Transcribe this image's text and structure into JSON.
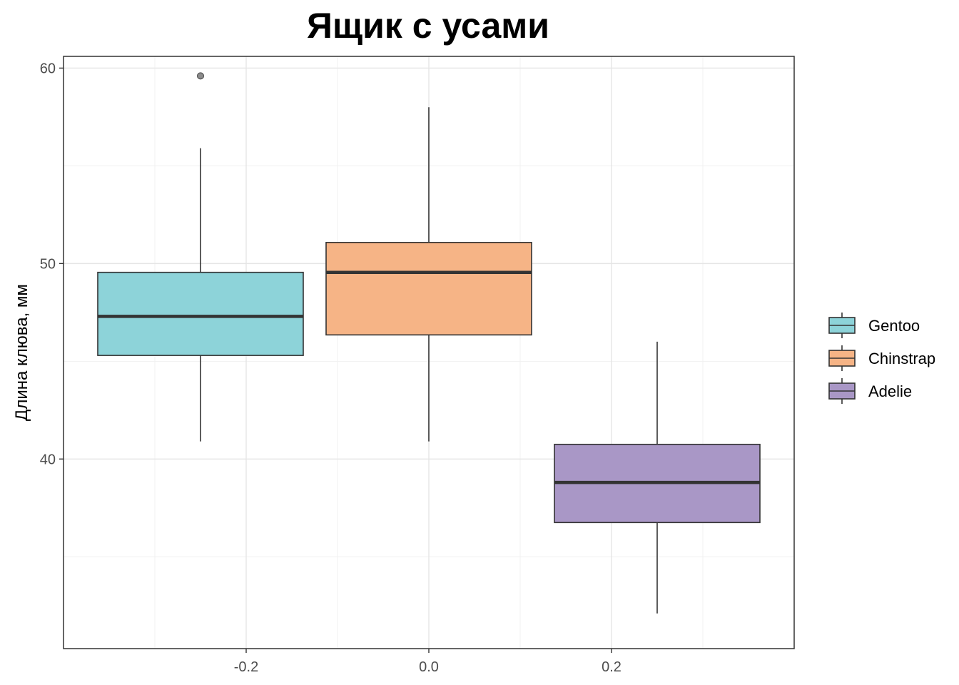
{
  "chart_data": {
    "type": "boxplot",
    "title": "Ящик с усами",
    "xlabel": "",
    "ylabel": "Длина клюва, мм",
    "xlim": [
      -0.4,
      0.4
    ],
    "ylim": [
      30.3,
      60.6
    ],
    "x_ticks": [
      -0.2,
      0.0,
      0.2
    ],
    "x_tick_labels": [
      "-0.2",
      "0.0",
      "0.2"
    ],
    "y_ticks": [
      40,
      50,
      60
    ],
    "y_tick_labels": [
      "40",
      "50",
      "60"
    ],
    "grid": true,
    "legend_position": "right",
    "series": [
      {
        "name": "Gentoo",
        "x_center": -0.25,
        "width": 0.225,
        "min": 40.9,
        "q1": 45.3,
        "median": 47.3,
        "q3": 49.55,
        "max": 55.9,
        "outliers": [
          59.6
        ],
        "color": "#8dd3d9"
      },
      {
        "name": "Chinstrap",
        "x_center": 0.0,
        "width": 0.225,
        "min": 40.9,
        "q1": 46.35,
        "median": 49.55,
        "q3": 51.08,
        "max": 58.0,
        "outliers": [],
        "color": "#f6b486"
      },
      {
        "name": "Adelie",
        "x_center": 0.25,
        "width": 0.225,
        "min": 32.1,
        "q1": 36.75,
        "median": 38.8,
        "q3": 40.75,
        "max": 46.0,
        "outliers": [],
        "color": "#a997c6"
      }
    ]
  }
}
